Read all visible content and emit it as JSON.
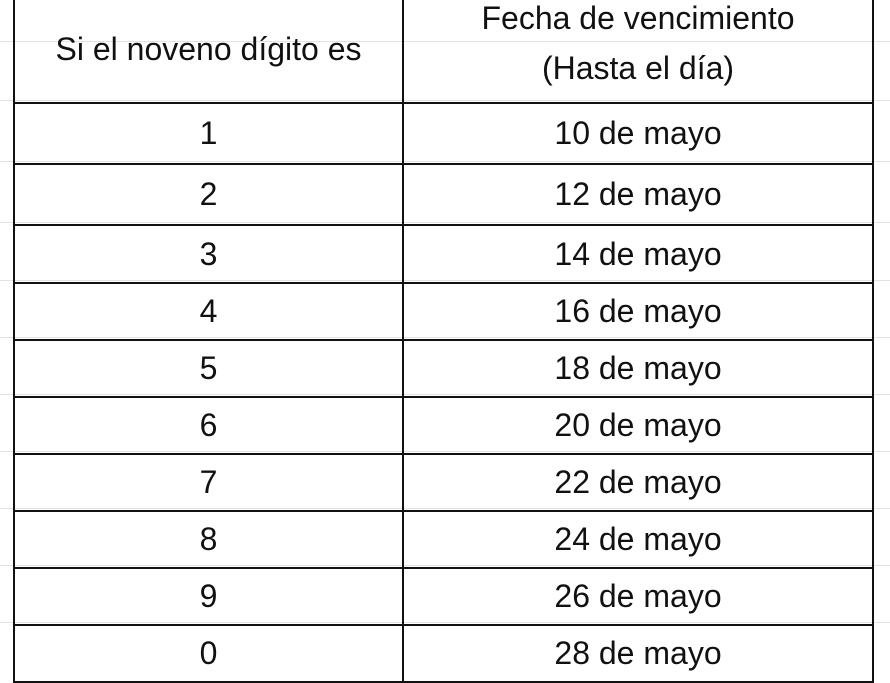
{
  "table": {
    "headers": [
      "Si el noveno dígito es",
      "Fecha de vencimiento",
      "(Hasta el día)"
    ],
    "rows": [
      {
        "digit": "1",
        "date": "10 de mayo"
      },
      {
        "digit": "2",
        "date": "12 de mayo"
      },
      {
        "digit": "3",
        "date": "14 de mayo"
      },
      {
        "digit": "4",
        "date": "16 de mayo"
      },
      {
        "digit": "5",
        "date": "18 de mayo"
      },
      {
        "digit": "6",
        "date": "20 de mayo"
      },
      {
        "digit": "7",
        "date": "22 de mayo"
      },
      {
        "digit": "8",
        "date": "24 de mayo"
      },
      {
        "digit": "9",
        "date": "26 de mayo"
      },
      {
        "digit": "0",
        "date": "28 de mayo"
      }
    ]
  }
}
